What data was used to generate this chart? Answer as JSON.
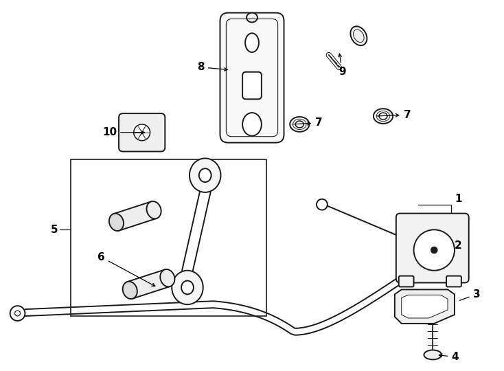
{
  "background_color": "#ffffff",
  "line_color": "#1a1a1a",
  "fig_width": 7.34,
  "fig_height": 5.4,
  "dpi": 100
}
